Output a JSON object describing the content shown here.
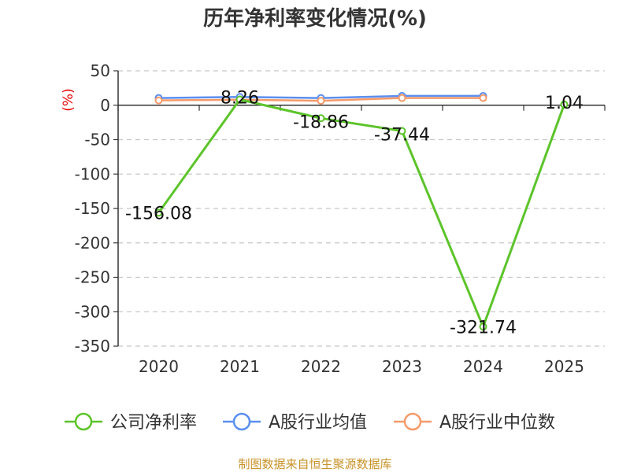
{
  "chart_data": {
    "type": "line",
    "title": "历年净利率变化情况(%)",
    "ylabel": "(%)",
    "xlabel": "",
    "categories": [
      "2020",
      "2021",
      "2022",
      "2023",
      "2024",
      "2025"
    ],
    "ylim": [
      -350,
      50
    ],
    "yticks": [
      50,
      0,
      -50,
      -100,
      -150,
      -200,
      -250,
      -300,
      -350
    ],
    "grid": true,
    "legend_position": "bottom",
    "series": [
      {
        "name": "公司净利率",
        "color": "#5cc42a",
        "values": [
          -156.08,
          8.26,
          -18.86,
          -37.44,
          -321.74,
          1.04
        ],
        "labels": [
          "-156.08",
          "8.26",
          "-18.86",
          "-37.44",
          "-321.74",
          "1.04"
        ]
      },
      {
        "name": "A股行业均值",
        "color": "#5b8ff0",
        "values": [
          10.5,
          12.0,
          10.5,
          13.5,
          13.5,
          null
        ]
      },
      {
        "name": "A股行业中位数",
        "color": "#f59a6a",
        "values": [
          7.0,
          8.0,
          6.5,
          10.5,
          10.5,
          null
        ]
      }
    ]
  },
  "source": "制图数据来自恒生聚源数据库"
}
